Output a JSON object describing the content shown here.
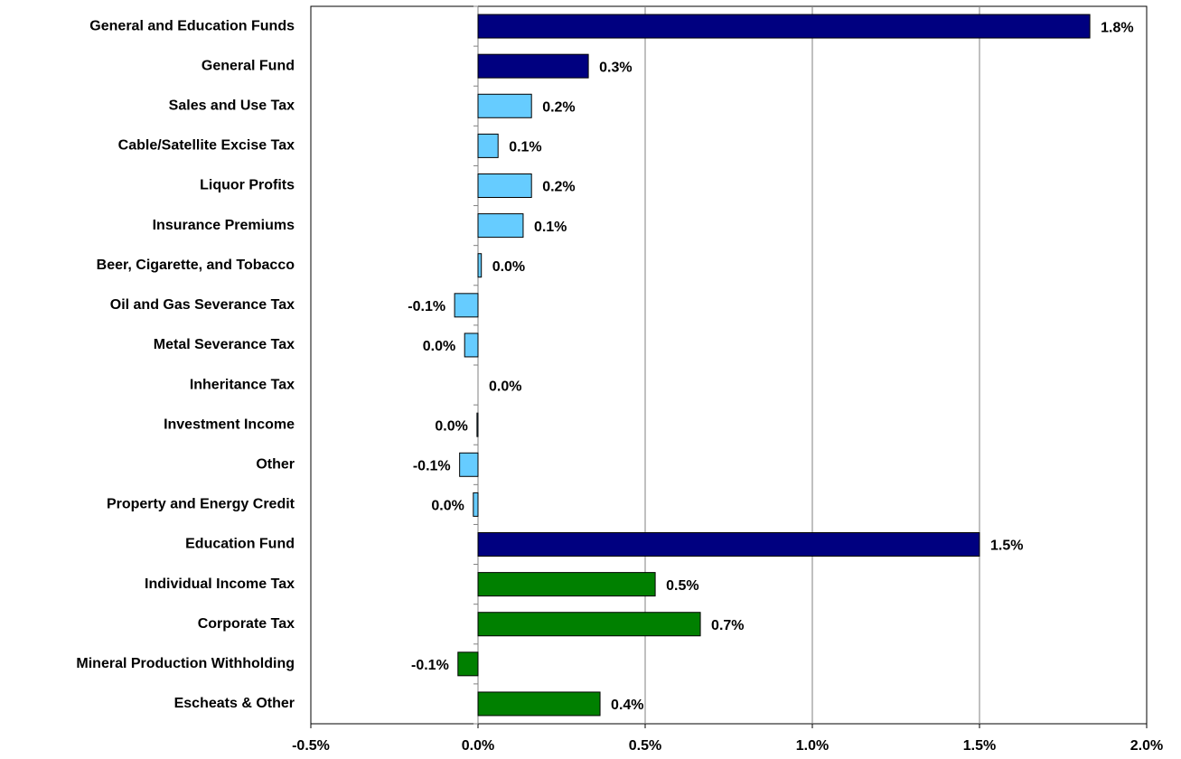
{
  "chart_data": {
    "type": "hbar",
    "categories": [
      "General and Education Funds",
      "General Fund",
      "Sales and Use Tax",
      "Cable/Satellite Excise Tax",
      "Liquor Profits",
      "Insurance Premiums",
      "Beer, Cigarette, and Tobacco",
      "Oil and Gas Severance Tax",
      "Metal Severance Tax",
      "Inheritance Tax",
      "Investment Income",
      "Other",
      "Property and Energy Credit",
      "Education Fund",
      "Individual Income Tax",
      "Corporate Tax",
      "Mineral Production Withholding",
      "Escheats & Other"
    ],
    "values": [
      1.83,
      0.33,
      0.16,
      0.06,
      0.16,
      0.135,
      0.01,
      -0.07,
      -0.04,
      0,
      -0.003,
      -0.055,
      -0.014,
      1.5,
      0.53,
      0.665,
      -0.06,
      0.365
    ],
    "value_labels": [
      "1.8%",
      "0.3%",
      "0.2%",
      "0.1%",
      "0.2%",
      "0.1%",
      "0.0%",
      "-0.1%",
      "0.0%",
      "0.0%",
      "0.0%",
      "-0.1%",
      "0.0%",
      "1.5%",
      "0.5%",
      "0.7%",
      "-0.1%",
      "0.4%"
    ],
    "colors": [
      "#000080",
      "#000080",
      "#66ccff",
      "#66ccff",
      "#66ccff",
      "#66ccff",
      "#66ccff",
      "#66ccff",
      "#66ccff",
      "#66ccff",
      "#66ccff",
      "#66ccff",
      "#66ccff",
      "#000080",
      "#008000",
      "#008000",
      "#008000",
      "#008000"
    ],
    "xlim": [
      -0.5,
      2.0
    ],
    "xticks": [
      {
        "value": -0.5,
        "label": "-0.5%"
      },
      {
        "value": 0,
        "label": "0.0%"
      },
      {
        "value": 0.5,
        "label": "0.5%"
      },
      {
        "value": 1.0,
        "label": "1.0%"
      },
      {
        "value": 1.5,
        "label": "1.5%"
      },
      {
        "value": 2.0,
        "label": "2.0%"
      }
    ],
    "grid": true
  }
}
